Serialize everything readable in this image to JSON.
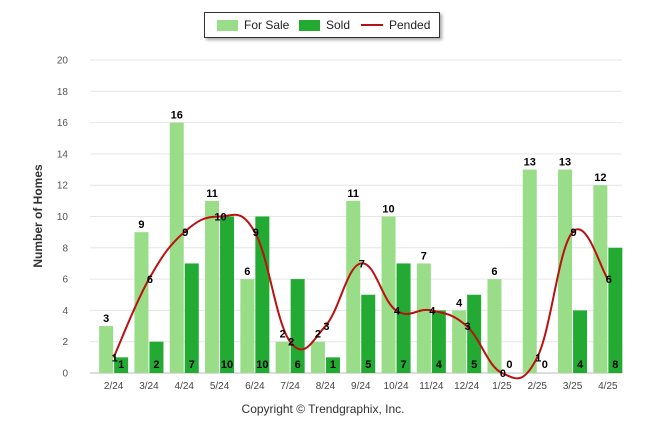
{
  "chart_data": {
    "type": "bar",
    "ylabel": "Number of Homes",
    "xlabel": "",
    "ylim": [
      0,
      20
    ],
    "yticks": [
      0,
      2,
      4,
      6,
      8,
      10,
      12,
      14,
      16,
      18,
      20
    ],
    "grid": true,
    "legend_position": "top-center",
    "categories": [
      "2/24",
      "3/24",
      "4/24",
      "5/24",
      "6/24",
      "7/24",
      "8/24",
      "9/24",
      "10/24",
      "11/24",
      "12/24",
      "1/25",
      "2/25",
      "3/25",
      "4/25"
    ],
    "series": [
      {
        "name": "For Sale",
        "kind": "bar",
        "color": "#99DD88",
        "values": [
          3,
          9,
          16,
          11,
          6,
          2,
          2,
          11,
          10,
          7,
          4,
          6,
          13,
          13,
          12
        ]
      },
      {
        "name": "Sold",
        "kind": "bar",
        "color": "#22AA33",
        "values": [
          1,
          2,
          7,
          10,
          10,
          6,
          1,
          5,
          7,
          4,
          5,
          0,
          0,
          4,
          8
        ]
      },
      {
        "name": "Pended",
        "kind": "line",
        "color": "#BB1111",
        "values": [
          1,
          6,
          9,
          10,
          9,
          2,
          3,
          7,
          4,
          4,
          3,
          0,
          1,
          9,
          6
        ]
      }
    ]
  },
  "legend": {
    "for_sale": "For Sale",
    "sold": "Sold",
    "pended": "Pended"
  },
  "footer": {
    "copyright": "Copyright © Trendgraphix, Inc."
  }
}
